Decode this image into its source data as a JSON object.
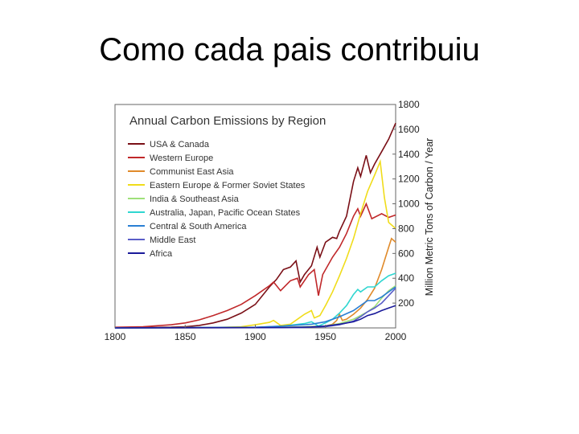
{
  "slide": {
    "title": "Como cada pais contribuiu"
  },
  "chart_data": {
    "type": "line",
    "title": "Annual Carbon Emissions by Region",
    "xlabel": "",
    "ylabel": "Million Metric Tons of Carbon / Year",
    "xlim": [
      1800,
      2000
    ],
    "ylim": [
      0,
      1800
    ],
    "xticks": [
      "1800",
      "1850",
      "1900",
      "1950",
      "2000"
    ],
    "yticks": [
      "200",
      "400",
      "600",
      "800",
      "1000",
      "1200",
      "1400",
      "1600",
      "1800"
    ],
    "legend_position": "top-left",
    "grid": false,
    "series": [
      {
        "name": "USA & Canada",
        "color": "#7a0f16",
        "points": [
          [
            1800,
            2
          ],
          [
            1820,
            3
          ],
          [
            1840,
            6
          ],
          [
            1850,
            10
          ],
          [
            1860,
            20
          ],
          [
            1870,
            40
          ],
          [
            1880,
            70
          ],
          [
            1890,
            120
          ],
          [
            1900,
            190
          ],
          [
            1910,
            330
          ],
          [
            1915,
            390
          ],
          [
            1920,
            470
          ],
          [
            1925,
            490
          ],
          [
            1929,
            540
          ],
          [
            1932,
            370
          ],
          [
            1935,
            430
          ],
          [
            1940,
            500
          ],
          [
            1944,
            650
          ],
          [
            1946,
            570
          ],
          [
            1950,
            690
          ],
          [
            1955,
            730
          ],
          [
            1958,
            720
          ],
          [
            1960,
            780
          ],
          [
            1965,
            900
          ],
          [
            1970,
            1180
          ],
          [
            1973,
            1290
          ],
          [
            1975,
            1220
          ],
          [
            1979,
            1390
          ],
          [
            1982,
            1250
          ],
          [
            1985,
            1320
          ],
          [
            1990,
            1420
          ],
          [
            1995,
            1520
          ],
          [
            2000,
            1650
          ]
        ]
      },
      {
        "name": "Western Europe",
        "color": "#c0282a",
        "points": [
          [
            1800,
            5
          ],
          [
            1820,
            10
          ],
          [
            1840,
            25
          ],
          [
            1850,
            40
          ],
          [
            1860,
            65
          ],
          [
            1870,
            100
          ],
          [
            1880,
            140
          ],
          [
            1890,
            190
          ],
          [
            1900,
            260
          ],
          [
            1910,
            340
          ],
          [
            1913,
            370
          ],
          [
            1918,
            300
          ],
          [
            1925,
            380
          ],
          [
            1930,
            400
          ],
          [
            1932,
            330
          ],
          [
            1938,
            430
          ],
          [
            1942,
            470
          ],
          [
            1945,
            260
          ],
          [
            1948,
            430
          ],
          [
            1955,
            570
          ],
          [
            1960,
            650
          ],
          [
            1965,
            760
          ],
          [
            1970,
            900
          ],
          [
            1973,
            960
          ],
          [
            1975,
            900
          ],
          [
            1979,
            1000
          ],
          [
            1983,
            880
          ],
          [
            1990,
            920
          ],
          [
            1995,
            890
          ],
          [
            2000,
            910
          ]
        ]
      },
      {
        "name": "Communist East Asia",
        "color": "#e08a2a",
        "points": [
          [
            1800,
            0
          ],
          [
            1900,
            2
          ],
          [
            1940,
            8
          ],
          [
            1950,
            15
          ],
          [
            1955,
            30
          ],
          [
            1958,
            60
          ],
          [
            1960,
            110
          ],
          [
            1962,
            60
          ],
          [
            1965,
            70
          ],
          [
            1970,
            110
          ],
          [
            1975,
            160
          ],
          [
            1980,
            230
          ],
          [
            1985,
            320
          ],
          [
            1990,
            470
          ],
          [
            1995,
            650
          ],
          [
            1997,
            720
          ],
          [
            2000,
            690
          ]
        ]
      },
      {
        "name": "Eastern Europe & Former Soviet States",
        "color": "#f0dc1a",
        "points": [
          [
            1800,
            0
          ],
          [
            1870,
            3
          ],
          [
            1890,
            10
          ],
          [
            1900,
            25
          ],
          [
            1910,
            45
          ],
          [
            1913,
            60
          ],
          [
            1918,
            20
          ],
          [
            1925,
            30
          ],
          [
            1930,
            70
          ],
          [
            1935,
            110
          ],
          [
            1940,
            140
          ],
          [
            1942,
            80
          ],
          [
            1946,
            100
          ],
          [
            1950,
            180
          ],
          [
            1955,
            290
          ],
          [
            1960,
            420
          ],
          [
            1965,
            560
          ],
          [
            1970,
            720
          ],
          [
            1975,
            920
          ],
          [
            1980,
            1100
          ],
          [
            1985,
            1230
          ],
          [
            1989,
            1340
          ],
          [
            1992,
            1050
          ],
          [
            1995,
            850
          ],
          [
            2000,
            800
          ]
        ]
      },
      {
        "name": "India & Southeast Asia",
        "color": "#9fe07a",
        "points": [
          [
            1800,
            0
          ],
          [
            1900,
            3
          ],
          [
            1930,
            8
          ],
          [
            1950,
            15
          ],
          [
            1960,
            35
          ],
          [
            1970,
            70
          ],
          [
            1980,
            130
          ],
          [
            1985,
            170
          ],
          [
            1990,
            240
          ],
          [
            1995,
            300
          ],
          [
            2000,
            340
          ]
        ]
      },
      {
        "name": "Australia, Japan, Pacific Ocean States",
        "color": "#2fd6d0",
        "points": [
          [
            1800,
            0
          ],
          [
            1900,
            4
          ],
          [
            1920,
            15
          ],
          [
            1935,
            35
          ],
          [
            1940,
            50
          ],
          [
            1945,
            15
          ],
          [
            1950,
            40
          ],
          [
            1955,
            70
          ],
          [
            1960,
            120
          ],
          [
            1965,
            180
          ],
          [
            1970,
            270
          ],
          [
            1973,
            310
          ],
          [
            1975,
            290
          ],
          [
            1980,
            330
          ],
          [
            1985,
            330
          ],
          [
            1990,
            380
          ],
          [
            1995,
            420
          ],
          [
            2000,
            440
          ]
        ]
      },
      {
        "name": "Central & South America",
        "color": "#2a7fd4",
        "points": [
          [
            1800,
            0
          ],
          [
            1900,
            5
          ],
          [
            1920,
            15
          ],
          [
            1940,
            30
          ],
          [
            1950,
            50
          ],
          [
            1960,
            90
          ],
          [
            1970,
            140
          ],
          [
            1980,
            220
          ],
          [
            1985,
            220
          ],
          [
            1990,
            250
          ],
          [
            1995,
            290
          ],
          [
            2000,
            330
          ]
        ]
      },
      {
        "name": "Middle East",
        "color": "#5a5ec8",
        "points": [
          [
            1800,
            0
          ],
          [
            1930,
            2
          ],
          [
            1950,
            10
          ],
          [
            1960,
            25
          ],
          [
            1970,
            55
          ],
          [
            1975,
            90
          ],
          [
            1980,
            130
          ],
          [
            1985,
            160
          ],
          [
            1990,
            200
          ],
          [
            1995,
            260
          ],
          [
            2000,
            320
          ]
        ]
      },
      {
        "name": "Africa",
        "color": "#1a1a9a",
        "points": [
          [
            1800,
            0
          ],
          [
            1920,
            3
          ],
          [
            1940,
            8
          ],
          [
            1950,
            15
          ],
          [
            1960,
            30
          ],
          [
            1970,
            50
          ],
          [
            1975,
            70
          ],
          [
            1980,
            100
          ],
          [
            1985,
            115
          ],
          [
            1990,
            140
          ],
          [
            1995,
            160
          ],
          [
            2000,
            180
          ]
        ]
      }
    ]
  }
}
